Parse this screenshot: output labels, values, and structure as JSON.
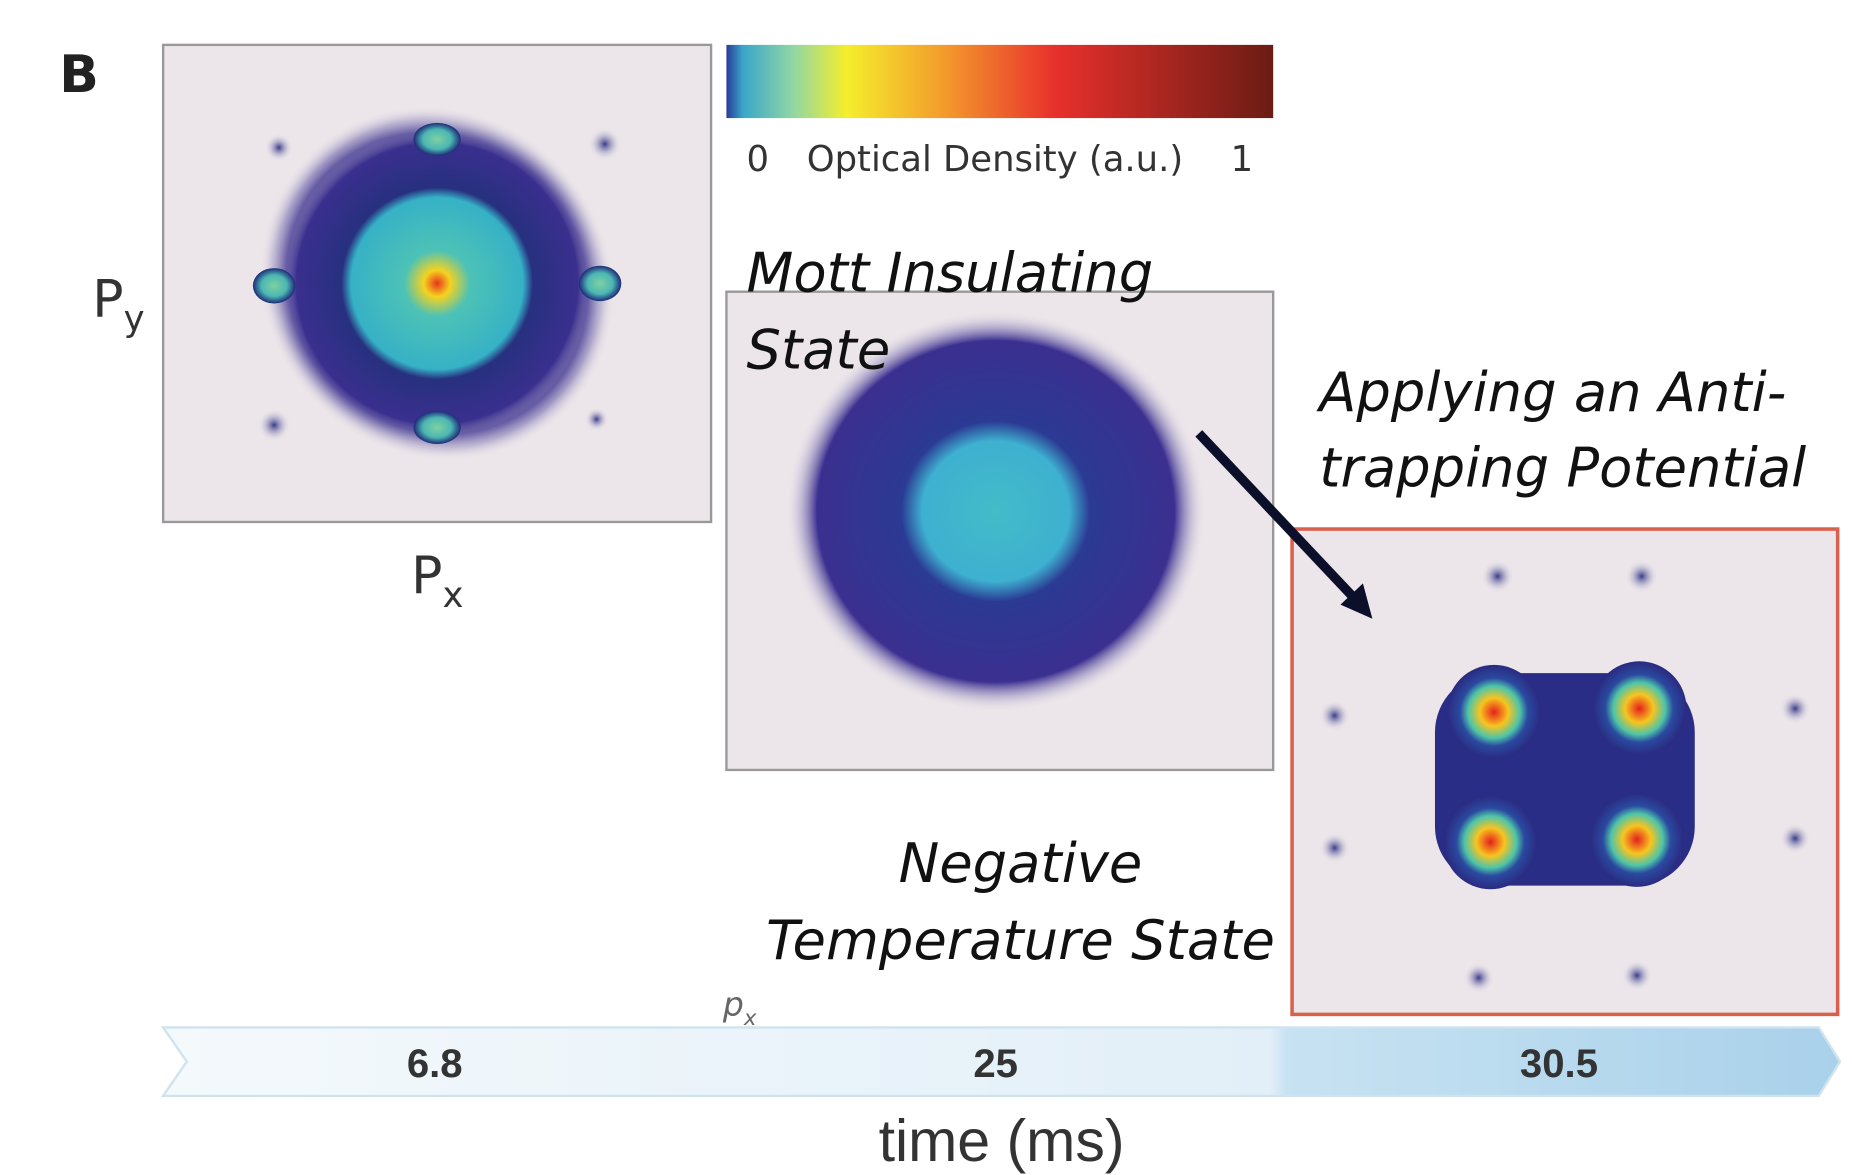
{
  "panel_label": "B",
  "axes": {
    "y_label": {
      "base": "P",
      "sub": "y"
    },
    "x_label": {
      "base": "P",
      "sub": "x"
    }
  },
  "colorbar": {
    "min_label": "0",
    "title": "Optical Density (a.u.)",
    "max_label": "1"
  },
  "annotations": {
    "mott": [
      "Mott Insulating",
      "State"
    ],
    "anti_trapping": [
      "Applying an Anti-",
      "trapping Potential"
    ],
    "negative": [
      "Negative",
      "Temperature State"
    ]
  },
  "small_axis_label": {
    "base": "p",
    "sub": "x"
  },
  "timeline": {
    "steps": [
      "6.8",
      "25",
      "30.5"
    ],
    "label": "time (ms)"
  }
}
